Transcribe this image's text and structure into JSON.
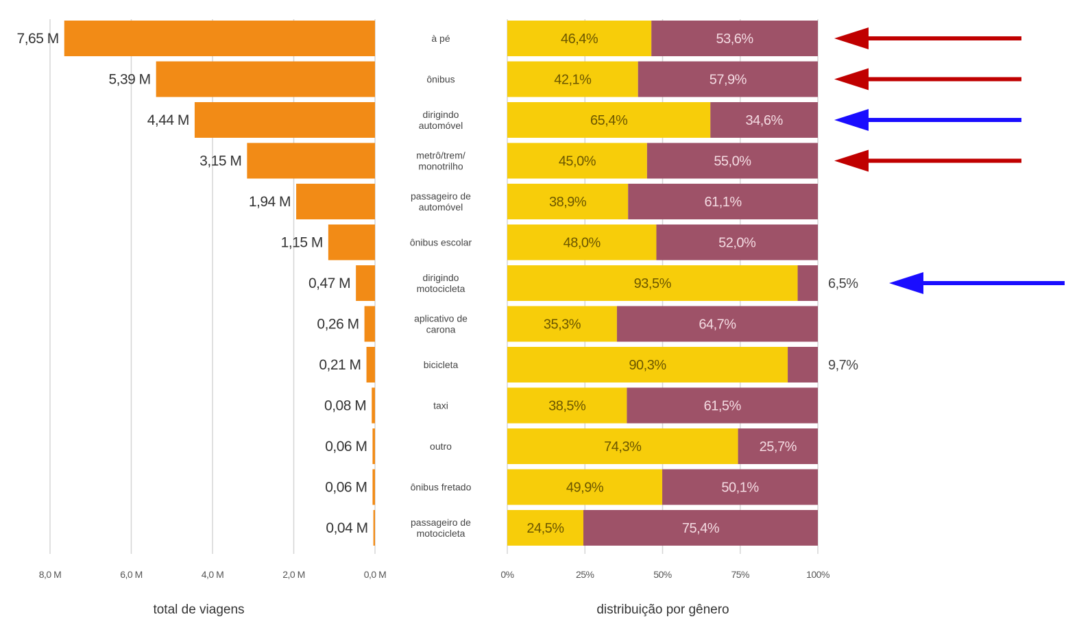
{
  "chart_data": [
    {
      "type": "bar",
      "orientation": "horizontal",
      "direction": "right-to-left",
      "title": "",
      "xlabel": "total de viagens",
      "xlim": [
        0,
        8
      ],
      "x_ticks": [
        "8,0 M",
        "6,0 M",
        "4,0 M",
        "2,0 M",
        "0,0 M"
      ],
      "grid": true,
      "color": "#f28b16",
      "categories": [
        "à pé",
        "ônibus",
        "dirigindo automóvel",
        "metrô/trem/ monotrilho",
        "passageiro de automóvel",
        "ônibus escolar",
        "dirigindo motocicleta",
        "aplicativo de carona",
        "bicicleta",
        "taxi",
        "outro",
        "ônibus fretado",
        "passageiro de motocicleta"
      ],
      "category_lines": [
        [
          "à pé"
        ],
        [
          "ônibus"
        ],
        [
          "dirigindo",
          "automóvel"
        ],
        [
          "metrô/trem/",
          "monotrilho"
        ],
        [
          "passageiro de",
          "automóvel"
        ],
        [
          "ônibus escolar"
        ],
        [
          "dirigindo",
          "motocicleta"
        ],
        [
          "aplicativo de",
          "carona"
        ],
        [
          "bicicleta"
        ],
        [
          "taxi"
        ],
        [
          "outro"
        ],
        [
          "ônibus fretado"
        ],
        [
          "passageiro de",
          "motocicleta"
        ]
      ],
      "values": [
        7.65,
        5.39,
        4.44,
        3.15,
        1.94,
        1.15,
        0.47,
        0.26,
        0.21,
        0.08,
        0.06,
        0.06,
        0.04
      ],
      "labels": [
        "7,65 M",
        "5,39 M",
        "4,44 M",
        "3,15 M",
        "1,94 M",
        "1,15 M",
        "0,47 M",
        "0,26 M",
        "0,21 M",
        "0,08 M",
        "0,06 M",
        "0,06 M",
        "0,04 M"
      ]
    },
    {
      "type": "bar",
      "orientation": "horizontal",
      "stacked": true,
      "title": "",
      "xlabel": "distribuição por gênero",
      "xlim": [
        0,
        100
      ],
      "x_ticks": [
        "0%",
        "25%",
        "50%",
        "75%",
        "100%"
      ],
      "grid": true,
      "series": [
        {
          "color": "#f7cd0a",
          "values": [
            46.4,
            42.1,
            65.4,
            45.0,
            38.9,
            48.0,
            93.5,
            35.3,
            90.3,
            38.5,
            74.3,
            49.9,
            24.5
          ],
          "labels": [
            "46,4%",
            "42,1%",
            "65,4%",
            "45,0%",
            "38,9%",
            "48,0%",
            "93,5%",
            "35,3%",
            "90,3%",
            "38,5%",
            "74,3%",
            "49,9%",
            "24,5%"
          ]
        },
        {
          "color": "#9e5268",
          "values": [
            53.6,
            57.9,
            34.6,
            55.0,
            61.1,
            52.0,
            6.5,
            64.7,
            9.7,
            61.5,
            25.7,
            50.1,
            75.4
          ],
          "labels": [
            "53,6%",
            "57,9%",
            "34,6%",
            "55,0%",
            "61,1%",
            "52,0%",
            "6,5%",
            "64,7%",
            "9,7%",
            "61,5%",
            "25,7%",
            "50,1%",
            "75,4%"
          ]
        }
      ]
    }
  ],
  "annotations": {
    "arrows": [
      {
        "row": 0,
        "color": "#c00000"
      },
      {
        "row": 1,
        "color": "#c00000"
      },
      {
        "row": 2,
        "color": "#1a0dff"
      },
      {
        "row": 3,
        "color": "#c00000"
      },
      {
        "row": 6,
        "color": "#1a0dff"
      }
    ]
  },
  "colors": {
    "grid": "#d5d5d5",
    "background": "#ffffff",
    "seg_text_yellow": "#6b5600",
    "seg_text_purple": "#f4dbe2"
  }
}
